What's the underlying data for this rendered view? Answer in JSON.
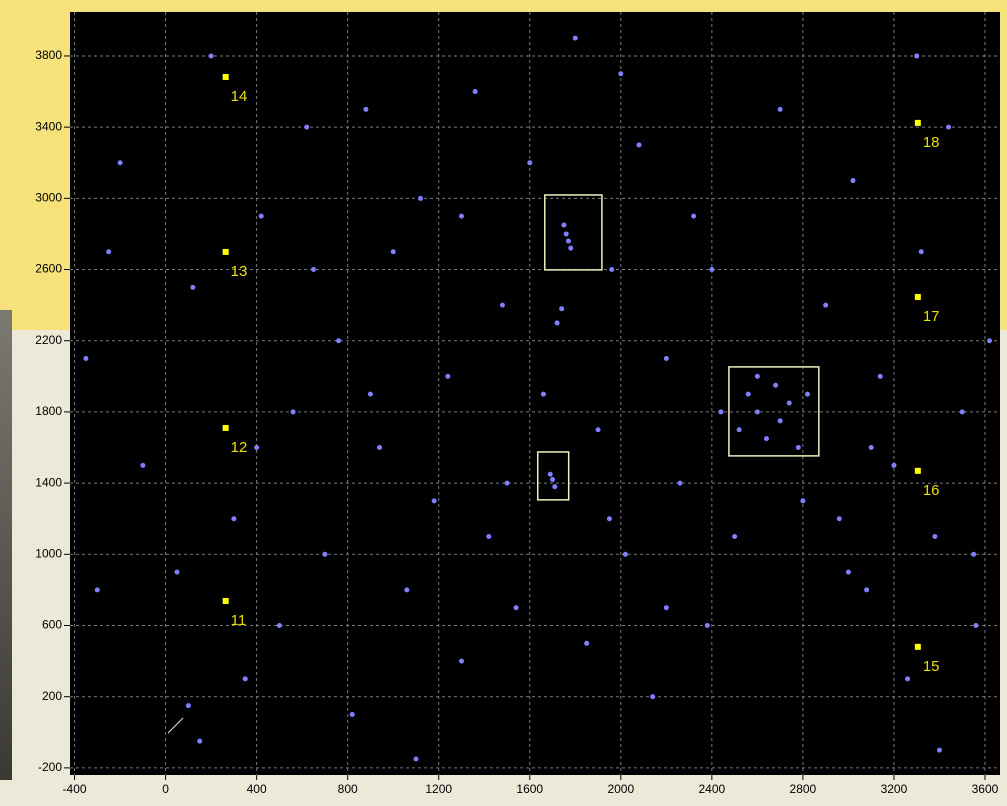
{
  "chart_data": {
    "type": "scatter",
    "xlim": [
      -420,
      3666
    ],
    "ylim": [
      -240,
      4047
    ],
    "xticks": [
      -400,
      0,
      400,
      800,
      1200,
      1600,
      2000,
      2400,
      2800,
      3200,
      3600
    ],
    "yticks": [
      -200,
      200,
      600,
      1000,
      1400,
      1800,
      2200,
      2600,
      3000,
      3400,
      3800
    ],
    "grid": true,
    "series": [
      {
        "color": "#8080ff",
        "x": [
          -350,
          -200,
          -100,
          50,
          120,
          200,
          300,
          350,
          420,
          500,
          560,
          620,
          700,
          760,
          820,
          880,
          940,
          1000,
          1060,
          1120,
          1180,
          1240,
          1300,
          1360,
          1420,
          1480,
          1540,
          1600,
          1660,
          1720,
          1760,
          1770,
          1750,
          1780,
          1740,
          1700,
          1710,
          1690,
          1800,
          1850,
          1900,
          1960,
          2020,
          2080,
          2140,
          2200,
          2260,
          2320,
          2380,
          2440,
          2520,
          2560,
          2600,
          2640,
          2680,
          2700,
          2740,
          2780,
          2820,
          2600,
          2900,
          2960,
          3020,
          3080,
          3140,
          3200,
          3260,
          3320,
          3380,
          3440,
          3500,
          3560,
          3620,
          3000,
          2500,
          2200,
          3100,
          2800,
          1500,
          900,
          400,
          -300,
          -250,
          100,
          650,
          1300,
          2000,
          2700,
          3400,
          1100,
          150,
          3300,
          2400,
          1950,
          3550
        ],
        "values": [
          2100,
          3200,
          1500,
          900,
          2500,
          3800,
          1200,
          300,
          2900,
          600,
          1800,
          3400,
          1000,
          2200,
          100,
          3500,
          1600,
          2700,
          800,
          3000,
          1300,
          2000,
          400,
          3600,
          1100,
          2400,
          700,
          3200,
          1900,
          2300,
          2800,
          2760,
          2850,
          2720,
          2380,
          1420,
          1380,
          1450,
          3900,
          500,
          1700,
          2600,
          1000,
          3300,
          200,
          2100,
          1400,
          2900,
          600,
          1800,
          1700,
          1900,
          1800,
          1650,
          1950,
          1750,
          1850,
          1600,
          1900,
          2000,
          2400,
          1200,
          3100,
          800,
          2000,
          1500,
          300,
          2700,
          1100,
          3400,
          1800,
          600,
          2200,
          900,
          1100,
          700,
          1600,
          1300,
          1400,
          1900,
          1600,
          800,
          2700,
          150,
          2600,
          2900,
          3700,
          3500,
          -100,
          -150,
          -50,
          3800,
          2600,
          1200,
          1000
        ]
      }
    ],
    "markers": {
      "color": "#ffff00",
      "labels": [
        "14",
        "13",
        "12",
        "11",
        "18",
        "17",
        "16",
        "15"
      ],
      "x": [
        264,
        264,
        264,
        264,
        3305,
        3305,
        3305,
        3305
      ],
      "values": [
        3682,
        2699,
        1710,
        738,
        3424,
        2446,
        1469,
        480
      ]
    },
    "regions": [
      {
        "x0": 1666,
        "x1": 1917,
        "y0": 2598,
        "y1": 3019
      },
      {
        "x0": 1635,
        "x1": 1771,
        "y0": 1306,
        "y1": 1575
      },
      {
        "x0": 2475,
        "x1": 2870,
        "y0": 1553,
        "y1": 2053
      }
    ]
  }
}
